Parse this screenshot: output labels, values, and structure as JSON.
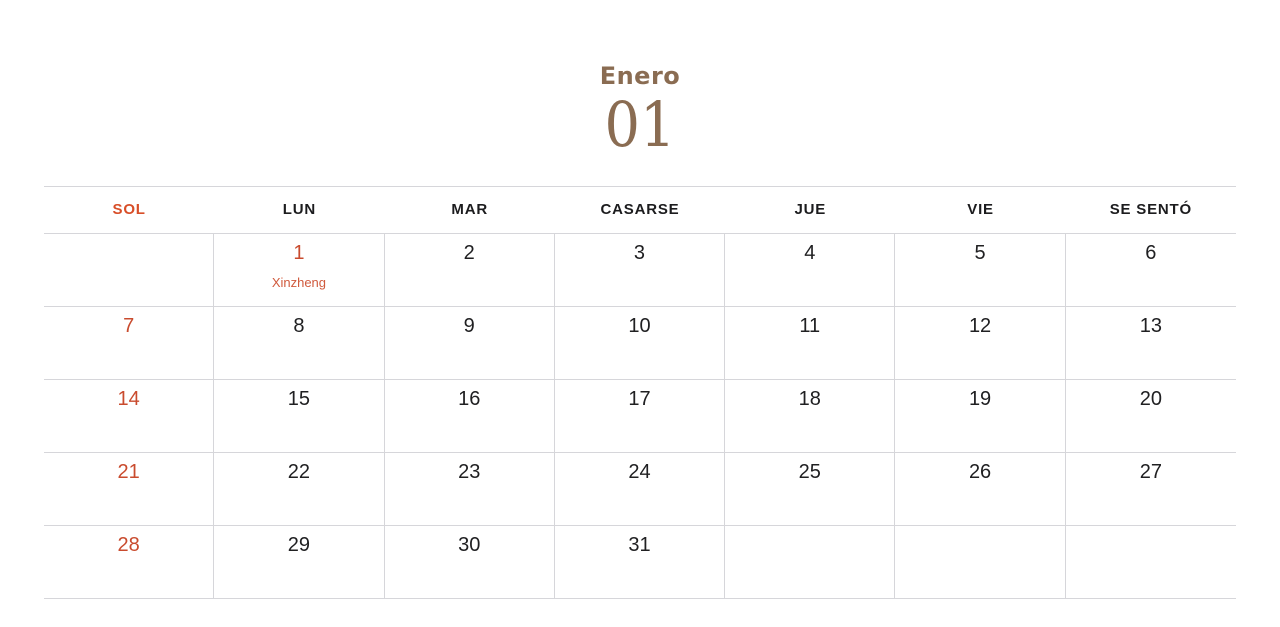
{
  "header": {
    "month_name": "Enero",
    "month_number": "01"
  },
  "calendar": {
    "weekday_headers": [
      {
        "label": "SOL",
        "highlight": true
      },
      {
        "label": "LUN",
        "highlight": false
      },
      {
        "label": "MAR",
        "highlight": false
      },
      {
        "label": "CASARSE",
        "highlight": false
      },
      {
        "label": "JUE",
        "highlight": false
      },
      {
        "label": "VIE",
        "highlight": false
      },
      {
        "label": "SE SENTÓ",
        "highlight": false
      }
    ],
    "weeks": [
      [
        {
          "day": "",
          "event": "",
          "highlight": false
        },
        {
          "day": "1",
          "event": "Xinzheng",
          "highlight": true
        },
        {
          "day": "2",
          "event": "",
          "highlight": false
        },
        {
          "day": "3",
          "event": "",
          "highlight": false
        },
        {
          "day": "4",
          "event": "",
          "highlight": false
        },
        {
          "day": "5",
          "event": "",
          "highlight": false
        },
        {
          "day": "6",
          "event": "",
          "highlight": false
        }
      ],
      [
        {
          "day": "7",
          "event": "",
          "highlight": true
        },
        {
          "day": "8",
          "event": "",
          "highlight": false
        },
        {
          "day": "9",
          "event": "",
          "highlight": false
        },
        {
          "day": "10",
          "event": "",
          "highlight": false
        },
        {
          "day": "11",
          "event": "",
          "highlight": false
        },
        {
          "day": "12",
          "event": "",
          "highlight": false
        },
        {
          "day": "13",
          "event": "",
          "highlight": false
        }
      ],
      [
        {
          "day": "14",
          "event": "",
          "highlight": true
        },
        {
          "day": "15",
          "event": "",
          "highlight": false
        },
        {
          "day": "16",
          "event": "",
          "highlight": false
        },
        {
          "day": "17",
          "event": "",
          "highlight": false
        },
        {
          "day": "18",
          "event": "",
          "highlight": false
        },
        {
          "day": "19",
          "event": "",
          "highlight": false
        },
        {
          "day": "20",
          "event": "",
          "highlight": false
        }
      ],
      [
        {
          "day": "21",
          "event": "",
          "highlight": true
        },
        {
          "day": "22",
          "event": "",
          "highlight": false
        },
        {
          "day": "23",
          "event": "",
          "highlight": false
        },
        {
          "day": "24",
          "event": "",
          "highlight": false
        },
        {
          "day": "25",
          "event": "",
          "highlight": false
        },
        {
          "day": "26",
          "event": "",
          "highlight": false
        },
        {
          "day": "27",
          "event": "",
          "highlight": false
        }
      ],
      [
        {
          "day": "28",
          "event": "",
          "highlight": true
        },
        {
          "day": "29",
          "event": "",
          "highlight": false
        },
        {
          "day": "30",
          "event": "",
          "highlight": false
        },
        {
          "day": "31",
          "event": "",
          "highlight": false
        },
        {
          "day": "",
          "event": "",
          "highlight": false
        },
        {
          "day": "",
          "event": "",
          "highlight": false
        },
        {
          "day": "",
          "event": "",
          "highlight": false
        }
      ]
    ]
  },
  "colors": {
    "accent_header": "#d84e28",
    "accent_day": "#c94b2e",
    "accent_event": "#d05a3d",
    "title_brown": "#8a6c52",
    "day_text": "#202022",
    "header_text": "#1c1c1e",
    "grid_line": "#d6d6da",
    "page_bg": "#ffffff"
  }
}
